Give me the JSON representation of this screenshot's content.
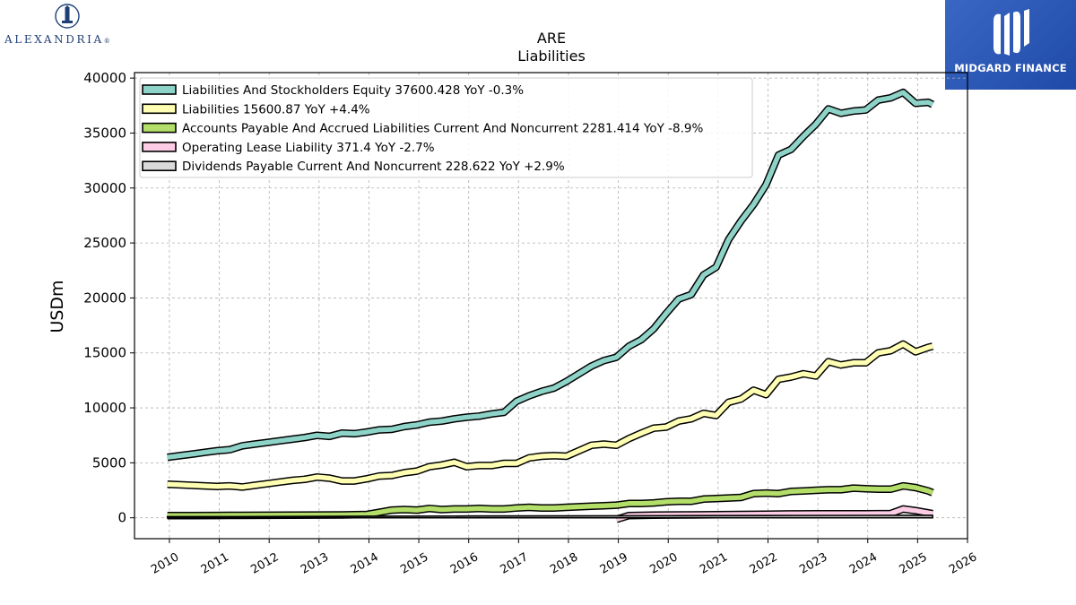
{
  "branding": {
    "left_logo_text": "ALEXANDRIA",
    "left_logo_suffix": "®",
    "left_logo_icon": "building-seal-icon",
    "right_logo_text": "MIDGARD FINANCE",
    "right_logo_icon": "midgard-monogram-icon",
    "right_logo_color": "#2d58b8"
  },
  "chart_data": {
    "type": "line",
    "title": "ARE",
    "subtitle": "Liabilities",
    "xlabel": "",
    "ylabel": "USDm",
    "xlim": [
      2009.3,
      2026.0
    ],
    "ylim": [
      -1900,
      40500
    ],
    "x_ticks": [
      "2010",
      "2011",
      "2012",
      "2013",
      "2014",
      "2015",
      "2016",
      "2017",
      "2018",
      "2019",
      "2020",
      "2021",
      "2022",
      "2023",
      "2024",
      "2025",
      "2026"
    ],
    "y_ticks": [
      "0",
      "5000",
      "10000",
      "15000",
      "20000",
      "25000",
      "30000",
      "35000",
      "40000"
    ],
    "grid": true,
    "legend_position": "top-left",
    "series": [
      {
        "name": "Liabilities And Stockholders Equity  37600.428 YoY -0.3%",
        "color": "#8dd3c7",
        "points": [
          [
            2009.96,
            5500
          ],
          [
            2010.21,
            5650
          ],
          [
            2010.46,
            5800
          ],
          [
            2010.71,
            5950
          ],
          [
            2010.96,
            6100
          ],
          [
            2011.21,
            6200
          ],
          [
            2011.46,
            6550
          ],
          [
            2011.71,
            6700
          ],
          [
            2011.96,
            6850
          ],
          [
            2012.21,
            7000
          ],
          [
            2012.46,
            7150
          ],
          [
            2012.71,
            7300
          ],
          [
            2012.96,
            7500
          ],
          [
            2013.21,
            7400
          ],
          [
            2013.46,
            7700
          ],
          [
            2013.71,
            7650
          ],
          [
            2013.96,
            7800
          ],
          [
            2014.21,
            8000
          ],
          [
            2014.46,
            8050
          ],
          [
            2014.71,
            8300
          ],
          [
            2014.96,
            8450
          ],
          [
            2015.21,
            8700
          ],
          [
            2015.46,
            8800
          ],
          [
            2015.71,
            9000
          ],
          [
            2015.96,
            9150
          ],
          [
            2016.21,
            9250
          ],
          [
            2016.46,
            9450
          ],
          [
            2016.71,
            9600
          ],
          [
            2016.96,
            10600
          ],
          [
            2017.21,
            11100
          ],
          [
            2017.46,
            11500
          ],
          [
            2017.71,
            11800
          ],
          [
            2017.96,
            12400
          ],
          [
            2018.21,
            13100
          ],
          [
            2018.46,
            13800
          ],
          [
            2018.71,
            14300
          ],
          [
            2018.96,
            14600
          ],
          [
            2019.21,
            15600
          ],
          [
            2019.46,
            16200
          ],
          [
            2019.71,
            17200
          ],
          [
            2019.96,
            18600
          ],
          [
            2020.21,
            19900
          ],
          [
            2020.46,
            20300
          ],
          [
            2020.71,
            22100
          ],
          [
            2020.96,
            22800
          ],
          [
            2021.21,
            25300
          ],
          [
            2021.46,
            27000
          ],
          [
            2021.71,
            28500
          ],
          [
            2021.96,
            30300
          ],
          [
            2022.21,
            33000
          ],
          [
            2022.46,
            33500
          ],
          [
            2022.71,
            34700
          ],
          [
            2022.96,
            35800
          ],
          [
            2023.21,
            37200
          ],
          [
            2023.46,
            36800
          ],
          [
            2023.71,
            37000
          ],
          [
            2023.96,
            37100
          ],
          [
            2024.21,
            38000
          ],
          [
            2024.46,
            38200
          ],
          [
            2024.71,
            38700
          ],
          [
            2024.96,
            37700
          ],
          [
            2025.21,
            37800
          ],
          [
            2025.3,
            37600
          ]
        ]
      },
      {
        "name": "Liabilities  15600.87 YoY +4.4%",
        "color": "#ffffb3",
        "points": [
          [
            2009.96,
            3050
          ],
          [
            2010.21,
            3000
          ],
          [
            2010.46,
            2950
          ],
          [
            2010.71,
            2900
          ],
          [
            2010.96,
            2850
          ],
          [
            2011.21,
            2900
          ],
          [
            2011.46,
            2800
          ],
          [
            2011.71,
            2950
          ],
          [
            2011.96,
            3100
          ],
          [
            2012.21,
            3250
          ],
          [
            2012.46,
            3400
          ],
          [
            2012.71,
            3500
          ],
          [
            2012.96,
            3700
          ],
          [
            2013.21,
            3600
          ],
          [
            2013.46,
            3350
          ],
          [
            2013.71,
            3350
          ],
          [
            2013.96,
            3550
          ],
          [
            2014.21,
            3800
          ],
          [
            2014.46,
            3850
          ],
          [
            2014.71,
            4100
          ],
          [
            2014.96,
            4250
          ],
          [
            2015.21,
            4650
          ],
          [
            2015.46,
            4800
          ],
          [
            2015.71,
            5050
          ],
          [
            2015.96,
            4650
          ],
          [
            2016.21,
            4750
          ],
          [
            2016.46,
            4750
          ],
          [
            2016.71,
            4950
          ],
          [
            2016.96,
            4950
          ],
          [
            2017.21,
            5450
          ],
          [
            2017.46,
            5600
          ],
          [
            2017.71,
            5650
          ],
          [
            2017.96,
            5600
          ],
          [
            2018.21,
            6100
          ],
          [
            2018.46,
            6600
          ],
          [
            2018.71,
            6700
          ],
          [
            2018.96,
            6600
          ],
          [
            2019.21,
            7200
          ],
          [
            2019.46,
            7700
          ],
          [
            2019.71,
            8150
          ],
          [
            2019.96,
            8250
          ],
          [
            2020.21,
            8800
          ],
          [
            2020.46,
            9000
          ],
          [
            2020.71,
            9500
          ],
          [
            2020.96,
            9300
          ],
          [
            2021.21,
            10500
          ],
          [
            2021.46,
            10800
          ],
          [
            2021.71,
            11600
          ],
          [
            2021.96,
            11200
          ],
          [
            2022.21,
            12600
          ],
          [
            2022.46,
            12800
          ],
          [
            2022.71,
            13100
          ],
          [
            2022.96,
            12900
          ],
          [
            2023.21,
            14200
          ],
          [
            2023.46,
            13900
          ],
          [
            2023.71,
            14100
          ],
          [
            2023.96,
            14100
          ],
          [
            2024.21,
            15000
          ],
          [
            2024.46,
            15200
          ],
          [
            2024.71,
            15800
          ],
          [
            2024.96,
            15100
          ],
          [
            2025.21,
            15500
          ],
          [
            2025.3,
            15600
          ]
        ]
      },
      {
        "name": "Accounts Payable And Accrued Liabilities Current And Noncurrent  2281.414 YoY -8.9%",
        "color": "#b3de69",
        "points": [
          [
            2009.96,
            200
          ],
          [
            2010.46,
            200
          ],
          [
            2010.96,
            210
          ],
          [
            2011.46,
            220
          ],
          [
            2011.96,
            230
          ],
          [
            2012.46,
            240
          ],
          [
            2012.96,
            250
          ],
          [
            2013.46,
            260
          ],
          [
            2013.96,
            300
          ],
          [
            2014.21,
            500
          ],
          [
            2014.46,
            700
          ],
          [
            2014.71,
            750
          ],
          [
            2014.96,
            700
          ],
          [
            2015.21,
            850
          ],
          [
            2015.46,
            750
          ],
          [
            2015.71,
            800
          ],
          [
            2015.96,
            800
          ],
          [
            2016.21,
            850
          ],
          [
            2016.46,
            800
          ],
          [
            2016.71,
            800
          ],
          [
            2016.96,
            900
          ],
          [
            2017.21,
            950
          ],
          [
            2017.46,
            900
          ],
          [
            2017.71,
            900
          ],
          [
            2017.96,
            950
          ],
          [
            2018.21,
            1000
          ],
          [
            2018.46,
            1050
          ],
          [
            2018.71,
            1100
          ],
          [
            2018.96,
            1150
          ],
          [
            2019.21,
            1300
          ],
          [
            2019.46,
            1300
          ],
          [
            2019.71,
            1350
          ],
          [
            2019.96,
            1450
          ],
          [
            2020.21,
            1500
          ],
          [
            2020.46,
            1500
          ],
          [
            2020.71,
            1700
          ],
          [
            2020.96,
            1750
          ],
          [
            2021.21,
            1800
          ],
          [
            2021.46,
            1850
          ],
          [
            2021.71,
            2200
          ],
          [
            2021.96,
            2250
          ],
          [
            2022.21,
            2200
          ],
          [
            2022.46,
            2400
          ],
          [
            2022.71,
            2450
          ],
          [
            2022.96,
            2500
          ],
          [
            2023.21,
            2550
          ],
          [
            2023.46,
            2550
          ],
          [
            2023.71,
            2700
          ],
          [
            2023.96,
            2650
          ],
          [
            2024.21,
            2600
          ],
          [
            2024.46,
            2600
          ],
          [
            2024.71,
            2900
          ],
          [
            2024.96,
            2750
          ],
          [
            2025.21,
            2450
          ],
          [
            2025.3,
            2280
          ]
        ]
      },
      {
        "name": "Operating Lease Liability  371.4 YoY -2.7%",
        "color": "#fccde5",
        "points": [
          [
            2018.96,
            -150
          ],
          [
            2019.21,
            200
          ],
          [
            2019.46,
            220
          ],
          [
            2019.71,
            240
          ],
          [
            2019.96,
            250
          ],
          [
            2020.46,
            260
          ],
          [
            2020.96,
            280
          ],
          [
            2021.46,
            300
          ],
          [
            2021.96,
            330
          ],
          [
            2022.46,
            350
          ],
          [
            2022.96,
            360
          ],
          [
            2023.46,
            370
          ],
          [
            2023.96,
            370
          ],
          [
            2024.46,
            380
          ],
          [
            2024.71,
            800
          ],
          [
            2024.96,
            650
          ],
          [
            2025.21,
            450
          ],
          [
            2025.3,
            371
          ]
        ]
      },
      {
        "name": "Dividends Payable Current And Noncurrent  228.622 YoY +2.9%",
        "color": "#d9d9d9",
        "points": [
          [
            2009.96,
            0
          ],
          [
            2011.96,
            0
          ],
          [
            2013.96,
            0
          ],
          [
            2015.96,
            0
          ],
          [
            2017.96,
            0
          ],
          [
            2019.96,
            0
          ],
          [
            2021.96,
            0
          ],
          [
            2023.96,
            0
          ],
          [
            2025.3,
            0
          ]
        ],
        "points_upper": [
          [
            2009.96,
            100
          ],
          [
            2011.96,
            110
          ],
          [
            2013.96,
            140
          ],
          [
            2015.96,
            160
          ],
          [
            2017.96,
            175
          ],
          [
            2019.96,
            190
          ],
          [
            2021.96,
            205
          ],
          [
            2023.96,
            220
          ],
          [
            2025.3,
            229
          ]
        ]
      }
    ]
  }
}
